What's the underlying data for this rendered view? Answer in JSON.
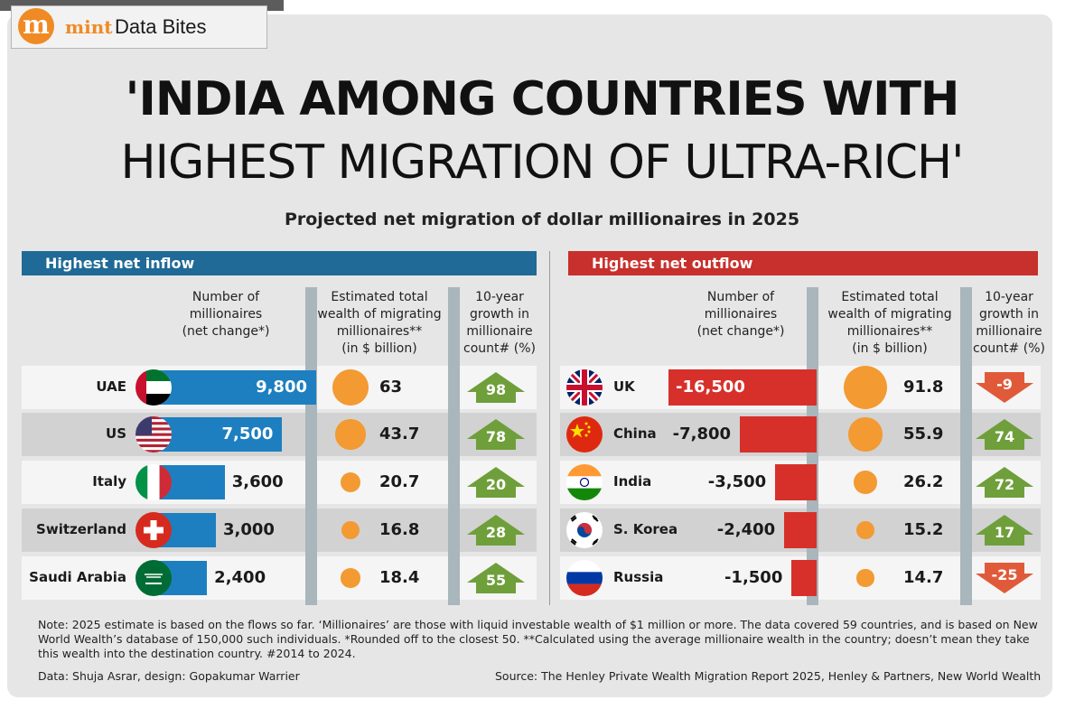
{
  "brand": {
    "logo_letter": "m",
    "name": "mint",
    "section": "Data Bites"
  },
  "title": {
    "line1": "'INDIA AMONG COUNTRIES WITH",
    "line2": "HIGHEST MIGRATION OF ULTRA-RICH'"
  },
  "subtitle": "Projected net migration of dollar millionaires in 2025",
  "colors": {
    "inflow_bar": "#1d7fc0",
    "inflow_header": "#1f6a96",
    "outflow_bar": "#d7302b",
    "outflow_header": "#c7302c",
    "wealth_circle": "#f39a32",
    "growth_up": "#6f9f3a",
    "growth_down": "#e05a3a"
  },
  "headers": {
    "number": [
      "Number of",
      "millionaires",
      "(net change*)"
    ],
    "wealth": [
      "Estimated total",
      "wealth of migrating",
      "millionaires**",
      "(in $ billion)"
    ],
    "growth": [
      "10-year",
      "growth in",
      "millionaire",
      "count# (%)"
    ]
  },
  "chart_data": [
    {
      "type": "bar",
      "title": "Highest net inflow",
      "series_meta": {
        "bar": "Number of millionaires (net change*)",
        "circle": "Estimated total wealth of migrating millionaires** (in $ billion)",
        "arrow": "10-year growth in millionaire count# (%)"
      },
      "rows": [
        {
          "country": "UAE",
          "flag": "uae-flag-icon",
          "net_change": 9800,
          "net_change_label": "9,800",
          "wealth_bn": 63,
          "wealth_label": "63",
          "growth_pct": 98,
          "growth_label": "98"
        },
        {
          "country": "US",
          "flag": "us-flag-icon",
          "net_change": 7500,
          "net_change_label": "7,500",
          "wealth_bn": 43.7,
          "wealth_label": "43.7",
          "growth_pct": 78,
          "growth_label": "78"
        },
        {
          "country": "Italy",
          "flag": "italy-flag-icon",
          "net_change": 3600,
          "net_change_label": "3,600",
          "wealth_bn": 20.7,
          "wealth_label": "20.7",
          "growth_pct": 20,
          "growth_label": "20"
        },
        {
          "country": "Switzerland",
          "flag": "switzerland-flag-icon",
          "net_change": 3000,
          "net_change_label": "3,000",
          "wealth_bn": 16.8,
          "wealth_label": "16.8",
          "growth_pct": 28,
          "growth_label": "28"
        },
        {
          "country": "Saudi Arabia",
          "flag": "saudi-arabia-flag-icon",
          "net_change": 2400,
          "net_change_label": "2,400",
          "wealth_bn": 18.4,
          "wealth_label": "18.4",
          "growth_pct": 55,
          "growth_label": "55"
        }
      ]
    },
    {
      "type": "bar",
      "title": "Highest net outflow",
      "series_meta": {
        "bar": "Number of millionaires (net change*)",
        "circle": "Estimated total wealth of migrating millionaires** (in $ billion)",
        "arrow": "10-year growth in millionaire count# (%)"
      },
      "rows": [
        {
          "country": "UK",
          "flag": "uk-flag-icon",
          "net_change": -16500,
          "net_change_label": "-16,500",
          "wealth_bn": 91.8,
          "wealth_label": "91.8",
          "growth_pct": -9,
          "growth_label": "-9"
        },
        {
          "country": "China",
          "flag": "china-flag-icon",
          "net_change": -7800,
          "net_change_label": "-7,800",
          "wealth_bn": 55.9,
          "wealth_label": "55.9",
          "growth_pct": 74,
          "growth_label": "74"
        },
        {
          "country": "India",
          "flag": "india-flag-icon",
          "net_change": -3500,
          "net_change_label": "-3,500",
          "wealth_bn": 26.2,
          "wealth_label": "26.2",
          "growth_pct": 72,
          "growth_label": "72"
        },
        {
          "country": "S. Korea",
          "flag": "south-korea-flag-icon",
          "net_change": -2400,
          "net_change_label": "-2,400",
          "wealth_bn": 15.2,
          "wealth_label": "15.2",
          "growth_pct": 17,
          "growth_label": "17"
        },
        {
          "country": "Russia",
          "flag": "russia-flag-icon",
          "net_change": -1500,
          "net_change_label": "-1,500",
          "wealth_bn": 14.7,
          "wealth_label": "14.7",
          "growth_pct": -25,
          "growth_label": "-25"
        }
      ]
    }
  ],
  "note": "Note: 2025 estimate is based on the flows so far. ‘Millionaires’ are those with liquid investable wealth of $1 million or more. The data covered 59 countries, and is based on New World Wealth’s database of 150,000 such individuals. *Rounded off to the closest 50. **Calculated using the average millionaire wealth in the country; doesn’t mean they take this wealth into the destination country. #2014 to 2024.",
  "credit": "Data: Shuja Asrar, design: Gopakumar Warrier",
  "source": "Source: The Henley Private Wealth Migration Report 2025, Henley & Partners, New World Wealth"
}
